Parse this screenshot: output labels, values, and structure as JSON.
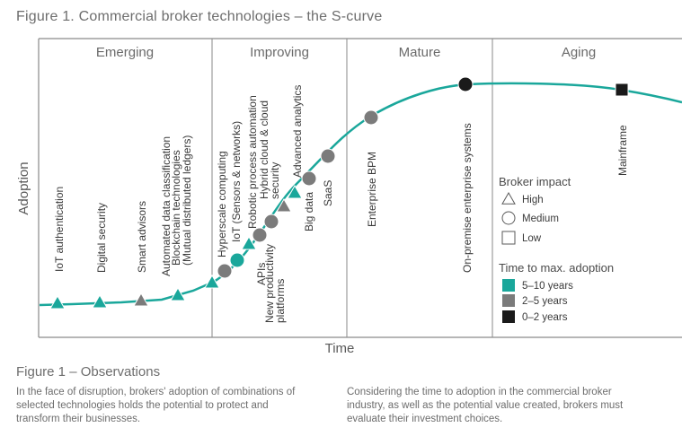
{
  "title": "Figure 1. Commercial broker technologies – the S-curve",
  "chart_data": {
    "type": "scatter",
    "x_axis_label": "Time",
    "y_axis_label": "Adoption",
    "phases": [
      "Emerging",
      "Improving",
      "Mature",
      "Aging"
    ],
    "technologies": [
      {
        "label": "IoT authentication",
        "impact": "High",
        "time": "5–10 years"
      },
      {
        "label": "Digital security",
        "impact": "High",
        "time": "5–10 years"
      },
      {
        "label": "Smart advisors",
        "impact": "High",
        "time": "2–5 years"
      },
      {
        "label": "Automated data classification",
        "impact": "High",
        "time": "5–10 years"
      },
      {
        "label": "Blockchain technologies (Mutual distributed ledgers)",
        "impact": "High",
        "time": "5–10 years"
      },
      {
        "label": "Hyperscale computing",
        "impact": "Medium",
        "time": "2–5 years"
      },
      {
        "label": "IoT (Sensors & networks)",
        "impact": "Medium",
        "time": "5–10 years"
      },
      {
        "label": "Robotic process automation",
        "impact": "High",
        "time": "5–10 years"
      },
      {
        "label": "APIs",
        "impact": "Medium",
        "time": "2–5 years"
      },
      {
        "label": "Hybrid cloud & cloud security",
        "impact": "Medium",
        "time": "2–5 years"
      },
      {
        "label": "New productivity platforms",
        "impact": "High",
        "time": "2–5 years"
      },
      {
        "label": "Advanced analytics",
        "impact": "High",
        "time": "5–10 years"
      },
      {
        "label": "Big data",
        "impact": "Medium",
        "time": "2–5 years"
      },
      {
        "label": "SaaS",
        "impact": "Medium",
        "time": "2–5 years"
      },
      {
        "label": "Enterprise BPM",
        "impact": "Medium",
        "time": "2–5 years"
      },
      {
        "label": "On-premise enterprise systems",
        "impact": "Medium",
        "time": "0–2 years"
      },
      {
        "label": "Mainframe",
        "impact": "Low",
        "time": "0–2 years"
      }
    ],
    "legend": {
      "impact_title": "Broker impact",
      "impact_items": [
        "High",
        "Medium",
        "Low"
      ],
      "time_title": "Time to max. adoption",
      "time_items": [
        {
          "label": "5–10 years",
          "color": "#1aa79b"
        },
        {
          "label": "2–5 years",
          "color": "#7b7b7b"
        },
        {
          "label": "0–2 years",
          "color": "#1a1a1a"
        }
      ]
    },
    "curve_color": "#1aa79b"
  },
  "observations": {
    "title": "Figure 1 – Observations",
    "left_text": "In the face of disruption, brokers' adoption of combinations of selected technologies holds the potential to protect and transform their businesses.",
    "right_text": "Considering the time to adoption in the commercial broker industry, as well as the potential value created, brokers must evaluate their investment choices."
  }
}
